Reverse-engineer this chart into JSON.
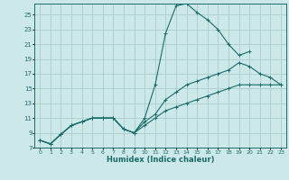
{
  "bg_color": "#cce8e8",
  "grid_color": "#aacccc",
  "line_color": "#1a6b6b",
  "xlabel": "Humidex (Indice chaleur)",
  "xlim": [
    -0.5,
    23.5
  ],
  "ylim": [
    7,
    26.5
  ],
  "yticks": [
    7,
    9,
    11,
    13,
    15,
    17,
    19,
    21,
    23,
    25
  ],
  "xticks": [
    0,
    1,
    2,
    3,
    4,
    5,
    6,
    7,
    8,
    9,
    10,
    11,
    12,
    13,
    14,
    15,
    16,
    17,
    18,
    19,
    20,
    21,
    22,
    23
  ],
  "line1_x": [
    0,
    1,
    2,
    3,
    4,
    5,
    6,
    7,
    8,
    9,
    10,
    11,
    12,
    13,
    14,
    15,
    16,
    17,
    18,
    19,
    20
  ],
  "line1_y": [
    8.0,
    7.5,
    8.8,
    10.0,
    10.5,
    11.0,
    11.0,
    11.0,
    9.5,
    9.0,
    11.0,
    15.5,
    22.5,
    26.2,
    26.5,
    25.3,
    24.3,
    23.0,
    21.0,
    19.5,
    20.0
  ],
  "line2_x": [
    0,
    1,
    2,
    3,
    4,
    5,
    6,
    7,
    8,
    9,
    10,
    11,
    12,
    13,
    14,
    15,
    16,
    17,
    18,
    19,
    20,
    21,
    22,
    23
  ],
  "line2_y": [
    8.0,
    7.5,
    8.8,
    10.0,
    10.5,
    11.0,
    11.0,
    11.0,
    9.5,
    9.0,
    10.5,
    11.5,
    13.5,
    14.5,
    15.5,
    16.0,
    16.5,
    17.0,
    17.5,
    18.5,
    18.0,
    17.0,
    16.5,
    15.5
  ],
  "line3_x": [
    0,
    1,
    2,
    3,
    4,
    5,
    6,
    7,
    8,
    9,
    10,
    11,
    12,
    13,
    14,
    15,
    16,
    17,
    18,
    19,
    20,
    21,
    22,
    23
  ],
  "line3_y": [
    8.0,
    7.5,
    8.8,
    10.0,
    10.5,
    11.0,
    11.0,
    11.0,
    9.5,
    9.0,
    10.0,
    11.0,
    12.0,
    12.5,
    13.0,
    13.5,
    14.0,
    14.5,
    15.0,
    15.5,
    15.5,
    15.5,
    15.5,
    15.5
  ]
}
